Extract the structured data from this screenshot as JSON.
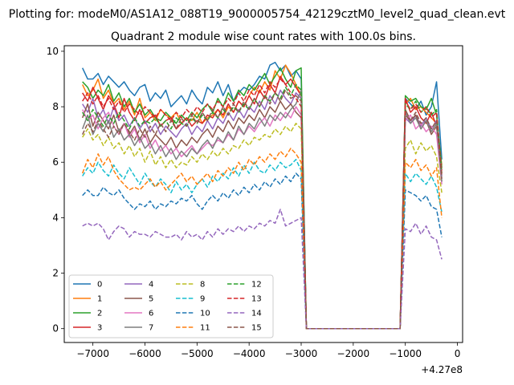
{
  "figure": {
    "suptitle": "Plotting for: modeM0/AS1A12_088T19_9000005754_42129cztM0_level2_quad_clean.evt",
    "title": "Quadrant 2 module wise count rates with 100.0s bins.",
    "x_offset_label": "+4.27e8"
  },
  "chart_data": {
    "type": "line",
    "title": "Quadrant 2 module wise count rates with 100.0s bins.",
    "xlabel": "",
    "ylabel": "",
    "xlim": [
      -7550,
      100
    ],
    "ylim": [
      -0.5,
      10.2
    ],
    "x_offset": 427000000,
    "x_ticks": [
      -7000,
      -6000,
      -5000,
      -4000,
      -3000,
      -2000,
      -1000,
      0
    ],
    "x_tick_labels": [
      "−7000",
      "−6000",
      "−5000",
      "−4000",
      "−3000",
      "−2000",
      "−1000",
      "0"
    ],
    "y_ticks": [
      0,
      2,
      4,
      6,
      8,
      10
    ],
    "y_tick_labels": [
      "0",
      "2",
      "4",
      "6",
      "8",
      "10"
    ],
    "grid": false,
    "legend": {
      "placement": "lower-left",
      "columns": 4
    },
    "segments": [
      {
        "x_start": -7200,
        "x_step": 100,
        "count": 43
      },
      {
        "x_start": -1000,
        "x_step": 100,
        "count": 8
      }
    ],
    "gap": {
      "x_start": -2900,
      "x_end": -1100,
      "value": 0
    },
    "series": [
      {
        "name": "0",
        "color": "#1f77b4",
        "dash": "solid",
        "seg1": [
          9.4,
          9.0,
          9.0,
          9.2,
          8.8,
          9.1,
          8.9,
          8.7,
          8.9,
          8.6,
          8.4,
          8.7,
          8.8,
          8.2,
          8.5,
          8.3,
          8.6,
          8.0,
          8.2,
          8.4,
          8.1,
          8.6,
          8.3,
          8.1,
          8.7,
          8.5,
          8.9,
          8.4,
          8.8,
          8.2,
          8.5,
          8.7,
          8.6,
          8.8,
          9.1,
          9.0,
          9.5,
          9.6,
          9.3,
          9.5,
          9.1,
          9.3,
          9.0
        ],
        "seg2": [
          8.3,
          8.1,
          7.9,
          8.2,
          7.7,
          8.0,
          8.9,
          6.1
        ]
      },
      {
        "name": "1",
        "color": "#ff7f0e",
        "dash": "solid",
        "seg1": [
          8.8,
          8.4,
          8.6,
          9.0,
          8.3,
          8.6,
          8.1,
          8.3,
          7.9,
          8.2,
          7.7,
          8.3,
          7.6,
          7.8,
          7.5,
          7.9,
          7.7,
          7.6,
          7.8,
          7.4,
          7.6,
          7.5,
          7.8,
          7.4,
          7.6,
          7.7,
          7.9,
          7.6,
          8.0,
          7.8,
          8.2,
          8.0,
          8.4,
          8.7,
          8.5,
          8.9,
          8.6,
          9.3,
          9.0,
          9.5,
          9.2,
          8.8,
          8.4
        ],
        "seg2": [
          8.1,
          8.3,
          7.9,
          8.0,
          7.8,
          7.6,
          7.4,
          5.9
        ]
      },
      {
        "name": "2",
        "color": "#2ca02c",
        "dash": "solid",
        "seg1": [
          8.9,
          8.7,
          8.3,
          8.6,
          8.4,
          8.8,
          8.2,
          8.5,
          8.0,
          8.3,
          7.8,
          8.1,
          7.7,
          7.9,
          7.6,
          7.5,
          7.8,
          7.6,
          7.4,
          7.7,
          7.5,
          7.8,
          7.6,
          7.9,
          8.1,
          7.8,
          8.3,
          8.0,
          8.5,
          8.2,
          8.6,
          8.4,
          8.8,
          8.6,
          8.9,
          9.2,
          8.8,
          9.1,
          9.4,
          9.0,
          8.7,
          9.3,
          9.4
        ],
        "seg2": [
          8.4,
          8.2,
          8.3,
          8.0,
          7.9,
          8.3,
          7.7,
          5.8
        ]
      },
      {
        "name": "3",
        "color": "#d62728",
        "dash": "solid",
        "seg1": [
          8.5,
          8.2,
          8.7,
          8.3,
          7.9,
          8.4,
          8.1,
          7.6,
          8.3,
          7.8,
          7.5,
          7.9,
          7.4,
          7.6,
          7.7,
          7.3,
          7.5,
          7.6,
          7.2,
          7.4,
          7.6,
          7.3,
          7.5,
          7.4,
          7.7,
          7.6,
          7.9,
          7.7,
          8.1,
          7.8,
          8.2,
          8.0,
          8.4,
          8.1,
          8.6,
          8.3,
          8.8,
          8.5,
          9.1,
          8.8,
          9.0,
          8.7,
          8.4
        ],
        "seg2": [
          8.3,
          7.8,
          8.0,
          7.6,
          7.4,
          7.8,
          7.3,
          5.7
        ]
      },
      {
        "name": "4",
        "color": "#9467bd",
        "dash": "solid",
        "seg1": [
          8.1,
          7.8,
          8.3,
          7.6,
          7.9,
          7.4,
          8.0,
          7.5,
          7.7,
          7.3,
          7.6,
          7.2,
          7.5,
          7.1,
          7.4,
          7.0,
          7.3,
          7.1,
          6.9,
          7.2,
          7.4,
          7.0,
          7.3,
          7.1,
          7.5,
          7.2,
          7.6,
          7.4,
          7.8,
          7.5,
          7.9,
          7.6,
          8.0,
          7.8,
          8.2,
          7.9,
          8.4,
          8.1,
          8.6,
          8.3,
          8.1,
          8.5,
          8.3
        ],
        "seg2": [
          7.6,
          7.4,
          7.7,
          7.3,
          7.6,
          7.2,
          7.5,
          5.5
        ]
      },
      {
        "name": "5",
        "color": "#8c564b",
        "dash": "solid",
        "seg1": [
          7.6,
          8.1,
          7.3,
          7.8,
          7.5,
          7.2,
          7.7,
          7.1,
          7.4,
          7.0,
          7.3,
          6.8,
          7.2,
          6.7,
          7.0,
          6.8,
          6.6,
          6.9,
          6.5,
          6.8,
          6.6,
          6.9,
          6.7,
          7.0,
          7.2,
          6.9,
          7.3,
          7.1,
          7.5,
          7.2,
          7.6,
          7.4,
          7.7,
          7.5,
          7.9,
          7.6,
          8.0,
          7.8,
          8.2,
          7.9,
          8.1,
          7.8,
          7.6
        ],
        "seg2": [
          7.9,
          7.5,
          7.7,
          7.2,
          7.5,
          7.0,
          7.3,
          5.3
        ]
      },
      {
        "name": "6",
        "color": "#e377c2",
        "dash": "solid",
        "seg1": [
          7.9,
          7.5,
          7.7,
          7.2,
          7.6,
          7.8,
          7.3,
          7.0,
          7.4,
          6.9,
          7.2,
          6.7,
          7.0,
          6.5,
          6.8,
          6.4,
          6.6,
          6.3,
          6.5,
          6.2,
          6.4,
          6.6,
          6.3,
          6.5,
          6.7,
          6.6,
          6.8,
          6.7,
          7.0,
          6.8,
          7.2,
          7.0,
          7.3,
          7.1,
          7.4,
          7.6,
          7.3,
          7.7,
          7.5,
          7.8,
          7.6,
          8.0,
          7.7
        ],
        "seg2": [
          7.5,
          7.7,
          7.2,
          7.4,
          7.1,
          7.3,
          7.0,
          5.2
        ]
      },
      {
        "name": "7",
        "color": "#7f7f7f",
        "dash": "solid",
        "seg1": [
          7.2,
          7.7,
          7.0,
          7.4,
          7.1,
          7.5,
          6.9,
          7.2,
          6.8,
          7.0,
          6.6,
          6.9,
          6.5,
          6.7,
          6.3,
          6.6,
          6.2,
          6.5,
          6.1,
          6.4,
          6.2,
          6.5,
          6.3,
          6.6,
          6.8,
          6.5,
          6.9,
          6.7,
          7.1,
          6.8,
          7.3,
          7.0,
          7.4,
          7.2,
          7.6,
          7.3,
          7.7,
          7.5,
          7.8,
          7.6,
          7.9,
          8.1,
          8.6
        ],
        "seg2": [
          7.8,
          7.4,
          7.6,
          7.2,
          7.5,
          7.1,
          7.4,
          5.3
        ]
      },
      {
        "name": "8",
        "color": "#bcbd22",
        "dash": "dashed",
        "seg1": [
          6.9,
          7.2,
          6.8,
          7.0,
          6.6,
          6.9,
          6.5,
          6.7,
          6.3,
          6.6,
          6.2,
          6.5,
          6.0,
          6.4,
          5.9,
          6.2,
          5.8,
          6.1,
          5.8,
          6.0,
          5.9,
          6.2,
          6.0,
          6.3,
          6.1,
          6.4,
          6.2,
          6.5,
          6.3,
          6.6,
          6.5,
          6.8,
          6.6,
          6.9,
          6.8,
          7.0,
          6.9,
          7.2,
          7.0,
          7.3,
          7.1,
          7.4,
          7.2
        ],
        "seg2": [
          6.5,
          6.8,
          6.3,
          6.7,
          6.4,
          6.6,
          6.2,
          4.9
        ]
      },
      {
        "name": "9",
        "color": "#17becf",
        "dash": "dashed",
        "seg1": [
          5.5,
          5.8,
          5.6,
          6.0,
          5.7,
          5.5,
          5.9,
          5.6,
          5.4,
          5.8,
          5.5,
          5.2,
          5.6,
          5.3,
          5.1,
          5.4,
          5.2,
          4.9,
          5.3,
          5.0,
          5.2,
          4.9,
          5.2,
          5.4,
          5.1,
          5.5,
          5.3,
          5.6,
          5.4,
          5.8,
          5.5,
          5.9,
          5.6,
          6.0,
          5.7,
          5.6,
          5.9,
          5.7,
          6.0,
          5.8,
          5.9,
          6.1,
          5.7
        ],
        "seg2": [
          5.6,
          5.3,
          5.6,
          5.4,
          5.2,
          5.5,
          5.1,
          4.2
        ]
      },
      {
        "name": "10",
        "color": "#1f77b4",
        "dash": "dashed",
        "seg1": [
          4.8,
          5.0,
          4.8,
          4.8,
          5.1,
          4.9,
          4.8,
          5.0,
          4.7,
          4.5,
          4.3,
          4.5,
          4.4,
          4.6,
          4.3,
          4.5,
          4.4,
          4.6,
          4.5,
          4.7,
          4.6,
          4.8,
          4.5,
          4.3,
          4.6,
          4.8,
          4.6,
          4.9,
          4.7,
          5.0,
          4.8,
          5.1,
          4.9,
          5.2,
          5.0,
          5.3,
          5.1,
          5.4,
          5.2,
          5.5,
          5.3,
          5.6,
          5.4
        ],
        "seg2": [
          5.0,
          4.9,
          4.8,
          4.6,
          4.8,
          4.4,
          4.3,
          3.3
        ]
      },
      {
        "name": "11",
        "color": "#ff7f0e",
        "dash": "dashed",
        "seg1": [
          5.6,
          6.1,
          5.8,
          6.3,
          5.9,
          6.2,
          5.7,
          5.4,
          5.2,
          5.0,
          5.1,
          5.0,
          5.2,
          5.4,
          5.1,
          5.3,
          5.0,
          5.2,
          5.4,
          5.6,
          5.3,
          5.5,
          5.2,
          5.4,
          5.6,
          5.3,
          5.7,
          5.5,
          5.8,
          5.6,
          6.0,
          5.7,
          6.1,
          5.9,
          6.2,
          6.0,
          6.3,
          6.1,
          6.4,
          6.2,
          6.5,
          6.3,
          6.0
        ],
        "seg2": [
          6.0,
          5.8,
          6.1,
          5.7,
          5.9,
          5.5,
          5.8,
          4.0
        ]
      },
      {
        "name": "12",
        "color": "#2ca02c",
        "dash": "dashed",
        "seg1": [
          7.8,
          7.5,
          7.9,
          7.6,
          7.3,
          7.7,
          7.4,
          7.8,
          7.5,
          7.2,
          7.6,
          7.3,
          7.5,
          7.4,
          7.6,
          7.3,
          7.5,
          7.2,
          7.6,
          7.4,
          7.3,
          7.6,
          7.4,
          7.7,
          7.5,
          7.8,
          7.6,
          7.9,
          7.7,
          8.0,
          7.8,
          8.1,
          7.9,
          8.3,
          8.0,
          8.4,
          8.2,
          8.5,
          8.3,
          8.7,
          8.4,
          8.8,
          8.6
        ],
        "seg2": [
          8.1,
          7.9,
          8.2,
          7.8,
          8.0,
          7.7,
          7.9,
          5.6
        ]
      },
      {
        "name": "13",
        "color": "#d62728",
        "dash": "dashed",
        "seg1": [
          8.2,
          8.5,
          8.1,
          8.4,
          8.0,
          8.3,
          7.9,
          8.2,
          7.8,
          8.1,
          7.9,
          7.7,
          8.0,
          7.8,
          7.6,
          7.9,
          7.7,
          7.5,
          7.8,
          7.6,
          7.9,
          7.7,
          8.0,
          7.8,
          8.1,
          7.9,
          8.2,
          8.0,
          8.3,
          8.1,
          8.5,
          8.2,
          8.6,
          8.4,
          8.8,
          8.5,
          8.9,
          8.7,
          9.0,
          8.8,
          8.5,
          8.3,
          8.0
        ],
        "seg2": [
          8.2,
          7.9,
          8.1,
          7.8,
          8.0,
          7.6,
          7.8,
          5.5
        ]
      },
      {
        "name": "14",
        "color": "#9467bd",
        "dash": "dashed",
        "seg1": [
          3.7,
          3.8,
          3.7,
          3.8,
          3.6,
          3.2,
          3.5,
          3.7,
          3.6,
          3.3,
          3.5,
          3.4,
          3.4,
          3.3,
          3.5,
          3.4,
          3.3,
          3.3,
          3.4,
          3.2,
          3.5,
          3.3,
          3.4,
          3.2,
          3.5,
          3.3,
          3.6,
          3.4,
          3.6,
          3.5,
          3.7,
          3.5,
          3.7,
          3.6,
          3.8,
          3.7,
          3.9,
          3.8,
          4.3,
          3.7,
          3.8,
          3.9,
          4.0
        ],
        "seg2": [
          3.6,
          3.5,
          3.8,
          3.4,
          3.7,
          3.3,
          3.2,
          2.5
        ]
      },
      {
        "name": "15",
        "color": "#8c564b",
        "dash": "dashed",
        "seg1": [
          7.0,
          7.4,
          7.1,
          7.5,
          7.2,
          6.9,
          7.3,
          7.0,
          7.4,
          7.1,
          6.8,
          7.2,
          6.9,
          7.3,
          7.0,
          7.4,
          7.1,
          7.5,
          7.2,
          7.6,
          7.3,
          7.7,
          7.4,
          7.8,
          7.5,
          7.9,
          7.6,
          8.0,
          7.7,
          8.1,
          7.8,
          8.2,
          7.9,
          8.3,
          8.0,
          8.4,
          8.1,
          8.5,
          8.2,
          8.6,
          8.3,
          8.4,
          8.2
        ],
        "seg2": [
          7.7,
          7.5,
          7.8,
          7.4,
          7.6,
          7.2,
          7.5,
          5.4
        ]
      }
    ]
  }
}
